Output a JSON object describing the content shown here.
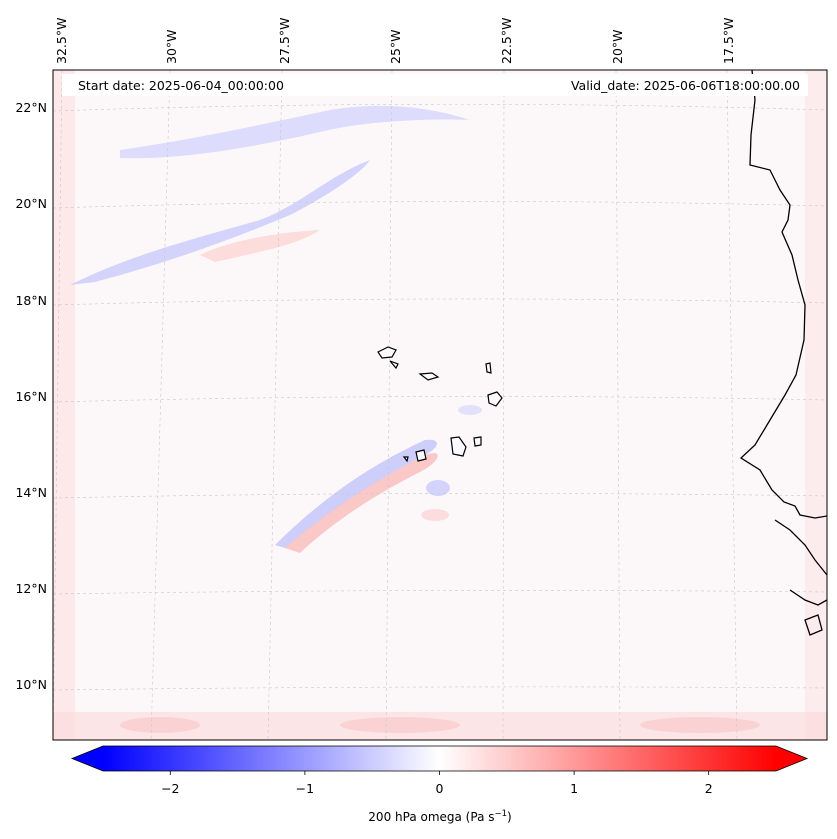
{
  "header": {
    "start_date": "Start date: 2025-06-04_00:00:00",
    "valid_date": "Valid_date: 2025-06-06T18:00:00.00"
  },
  "map": {
    "lon_labels": [
      "32.5°W",
      "30°W",
      "27.5°W",
      "25°W",
      "22.5°W",
      "20°W",
      "17.5°W"
    ],
    "lat_labels": [
      "22°N",
      "20°N",
      "18°N",
      "16°N",
      "14°N",
      "12°N",
      "10°N"
    ]
  },
  "colorbar": {
    "ticks": [
      "−2",
      "−1",
      "0",
      "1",
      "2"
    ],
    "tick_values": [
      -2,
      -1,
      0,
      1,
      2
    ],
    "range": [
      -2.5,
      2.5
    ],
    "label": "200 hPa omega (Pa s",
    "label_sup": "−1",
    "label_end": ")",
    "colors": {
      "negative": "#0000ff",
      "zero": "#ffffff",
      "positive": "#ff0000"
    }
  }
}
